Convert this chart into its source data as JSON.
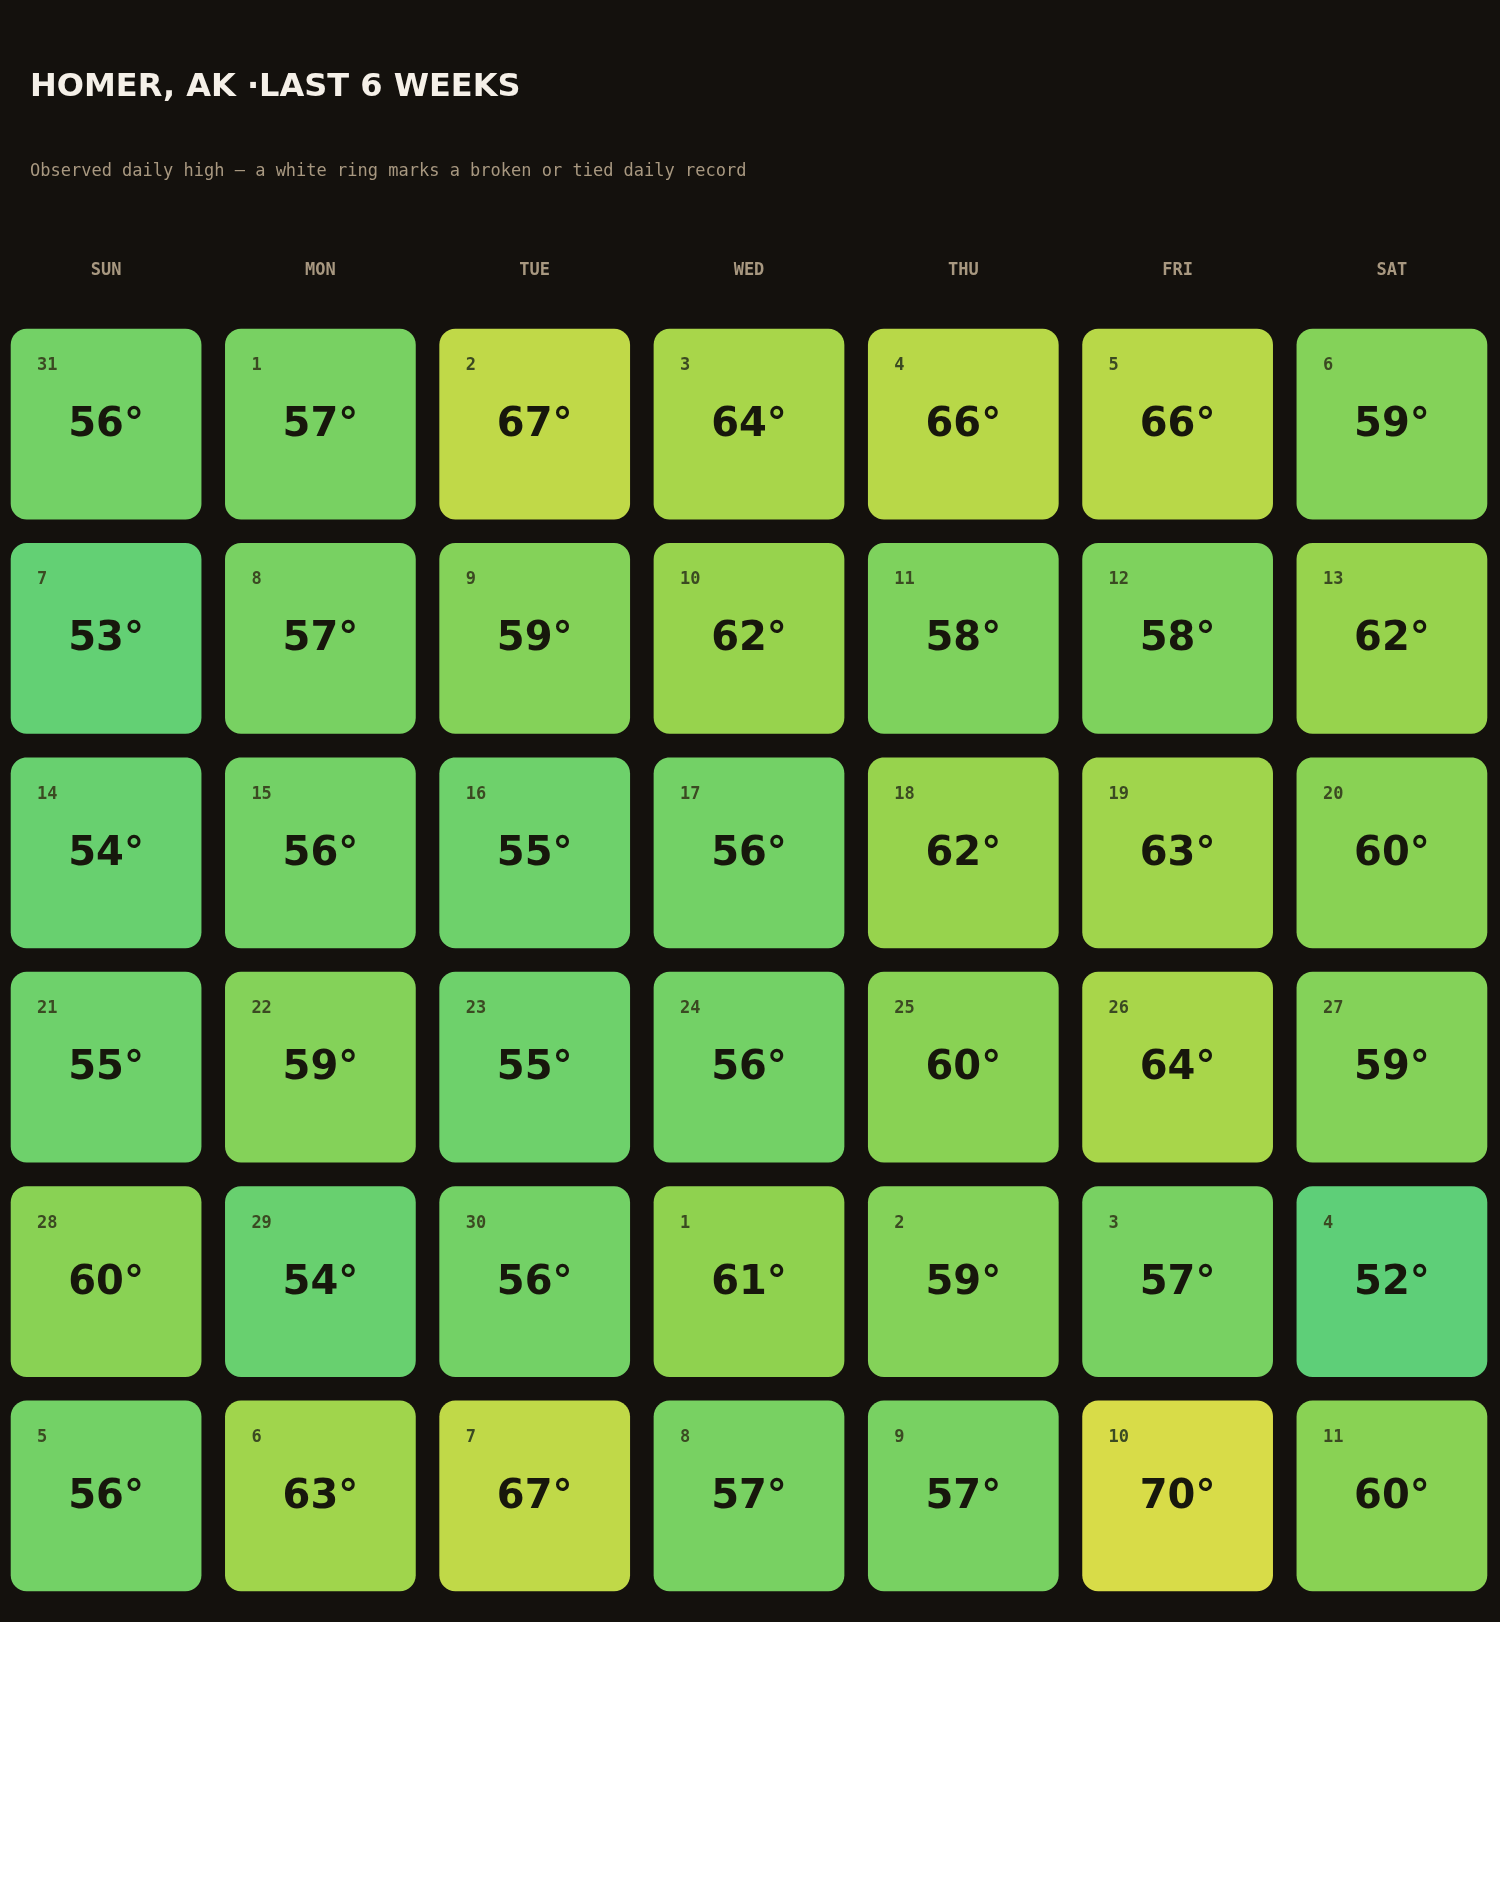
{
  "chart_data": {
    "type": "heatmap",
    "title": "HOMER, AK ·LAST 6 WEEKS",
    "subtitle": "Observed daily high — a white ring marks a broken or tied daily record",
    "categories": [
      "SUN",
      "MON",
      "TUE",
      "WED",
      "THU",
      "FRI",
      "SAT"
    ],
    "y_categories": [
      null,
      null,
      null,
      null,
      null,
      null
    ],
    "cells": [
      [
        56,
        57,
        67,
        64,
        66,
        66,
        59
      ],
      [
        53,
        57,
        59,
        62,
        58,
        58,
        62
      ],
      [
        54,
        56,
        55,
        56,
        62,
        63,
        60
      ],
      [
        55,
        59,
        55,
        56,
        60,
        64,
        59
      ],
      [
        60,
        54,
        56,
        61,
        59,
        57,
        52
      ],
      [
        56,
        63,
        67,
        57,
        57,
        70,
        60
      ]
    ],
    "cell_labels": [
      [
        "56°",
        "57°",
        "67°",
        "64°",
        "66°",
        "66°",
        "59°"
      ],
      [
        "53°",
        "57°",
        "59°",
        "62°",
        "58°",
        "58°",
        "62°"
      ],
      [
        "54°",
        "56°",
        "55°",
        "56°",
        "62°",
        "63°",
        "60°"
      ],
      [
        "55°",
        "59°",
        "55°",
        "56°",
        "60°",
        "64°",
        "59°"
      ],
      [
        "60°",
        "54°",
        "56°",
        "61°",
        "59°",
        "57°",
        "52°"
      ],
      [
        "56°",
        "63°",
        "67°",
        "57°",
        "57°",
        "70°",
        "60°"
      ]
    ],
    "annotations": [
      "31",
      "1",
      "2",
      "3",
      "4",
      "5",
      "6",
      "7",
      "8",
      "9",
      "10",
      "11",
      "12",
      "13",
      "14",
      "15",
      "16",
      "17",
      "18",
      "19",
      "20",
      "21",
      "22",
      "23",
      "24",
      "25",
      "26",
      "27",
      "28",
      "29",
      "30",
      "1",
      "2",
      "3",
      "4",
      "5",
      "6",
      "7",
      "8",
      "9",
      "10",
      "11"
    ]
  }
}
